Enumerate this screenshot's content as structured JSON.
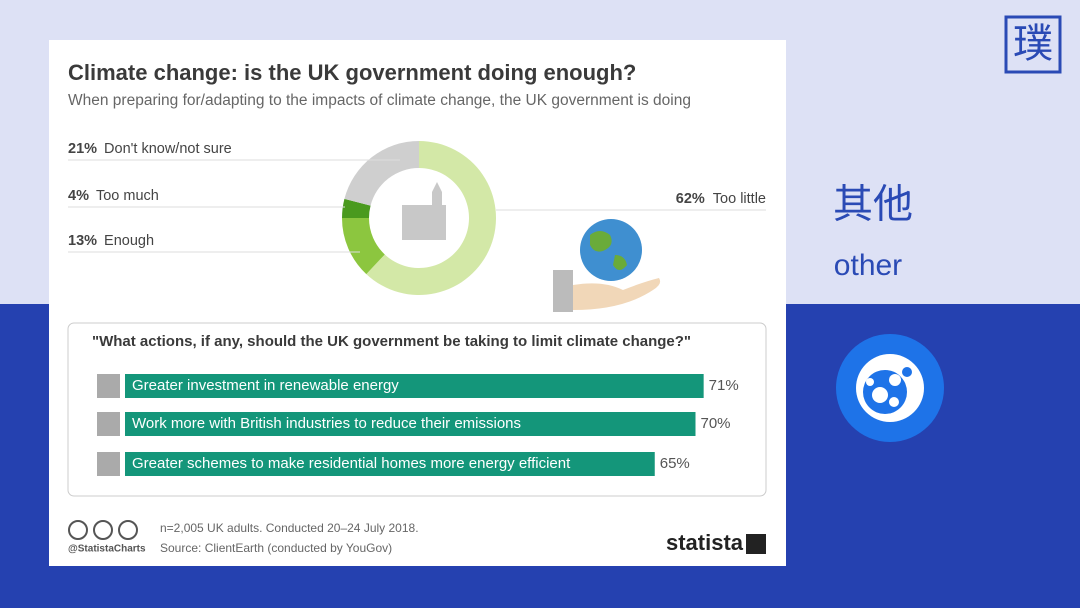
{
  "slide": {
    "logo": "璞",
    "label_zh": "其他",
    "label_en": "other"
  },
  "chart_data": [
    {
      "type": "pie",
      "title": "Climate change: is the UK government doing enough?",
      "subtitle": "When preparing for/adapting to the impacts of climate change, the UK government is doing",
      "categories": [
        "Too little",
        "Enough",
        "Too much",
        "Don't know/not sure"
      ],
      "values": [
        62,
        13,
        4,
        21
      ],
      "value_labels": [
        "62%",
        "13%",
        "4%",
        "21%"
      ],
      "colors": [
        "#d3e8a7",
        "#8cc63f",
        "#4a9a1e",
        "#cfcfcf"
      ]
    },
    {
      "type": "hbar",
      "title": "\"What actions, if any, should the UK government be taking to limit climate change?\"",
      "categories": [
        "Greater investment in renewable energy",
        "Work more with British industries to reduce their emissions",
        "Greater schemes to make residential homes more energy efficient"
      ],
      "values": [
        71,
        70,
        65
      ],
      "value_labels": [
        "71%",
        "70%",
        "65%"
      ],
      "color": "#14967a"
    }
  ],
  "footer": {
    "note": "n=2,005 UK adults. Conducted 20–24 July 2018.",
    "source": "Source: ClientEarth (conducted by YouGov)",
    "handle": "@StatistaCharts",
    "brand": "statista"
  }
}
